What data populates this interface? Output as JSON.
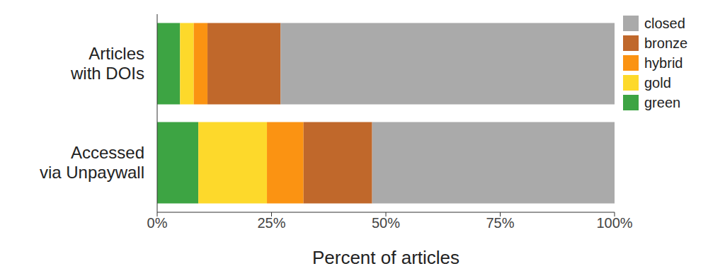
{
  "chart_data": {
    "type": "bar",
    "orientation": "horizontal",
    "stacked": true,
    "grid": false,
    "legend": "right",
    "xlabel": "Percent of articles",
    "categories": [
      "Articles with DOIs",
      "Accessed via Unpaywall"
    ],
    "series": [
      {
        "name": "green",
        "color": "#3da443",
        "values": [
          5,
          9
        ]
      },
      {
        "name": "gold",
        "color": "#fdd92b",
        "values": [
          3,
          15
        ]
      },
      {
        "name": "hybrid",
        "color": "#fb9312",
        "values": [
          3,
          8
        ]
      },
      {
        "name": "bronze",
        "color": "#c0682b",
        "values": [
          16,
          15
        ]
      },
      {
        "name": "closed",
        "color": "#aaaaaa",
        "values": [
          73,
          53
        ]
      }
    ],
    "xlim": [
      0,
      100
    ],
    "xticks": [
      {
        "value": 0,
        "label": "0%"
      },
      {
        "value": 25,
        "label": "25%"
      },
      {
        "value": 50,
        "label": "50%"
      },
      {
        "value": 75,
        "label": "75%"
      },
      {
        "value": 100,
        "label": "100%"
      }
    ]
  }
}
